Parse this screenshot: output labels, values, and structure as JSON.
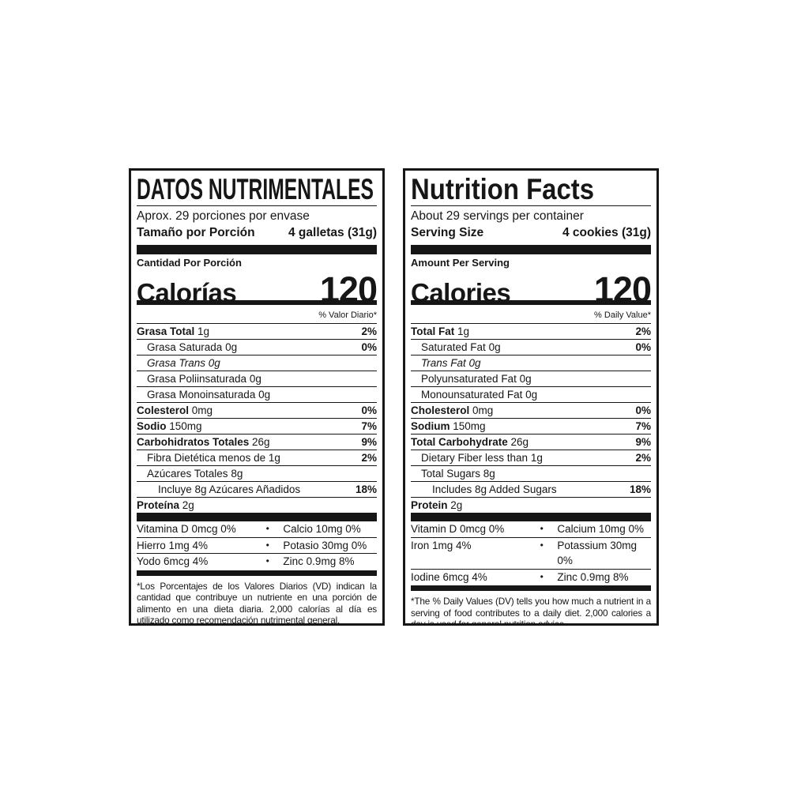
{
  "colors": {
    "ink": "#161616",
    "paper": "#ffffff"
  },
  "labels": [
    {
      "id": "spanish",
      "title": "DATOS NUTRIMENTALES",
      "servings_per_container": "Aprox. 29 porciones por envase",
      "serving_size_label": "Tamaño por Porción",
      "serving_size_value": "4 galletas (31g)",
      "amount_per_serving": "Cantidad Por Porción",
      "calories_label": "Calorías",
      "calories_value": "120",
      "daily_value_header": "% Valor Diario*",
      "nutrients": [
        {
          "name": "Grasa Total",
          "amount": "1g",
          "dv": "2%",
          "bold": true,
          "indent": 0
        },
        {
          "name": "Grasa Saturada",
          "amount": "0g",
          "dv": "0%",
          "indent": 1
        },
        {
          "name": "Grasa Trans",
          "amount": "0g",
          "dv": "",
          "indent": 1,
          "italic": true
        },
        {
          "name": "Grasa Poliinsaturada",
          "amount": "0g",
          "dv": "",
          "indent": 1
        },
        {
          "name": "Grasa Monoinsaturada",
          "amount": "0g",
          "dv": "",
          "indent": 1
        },
        {
          "name": "Colesterol",
          "amount": "0mg",
          "dv": "0%",
          "bold": true,
          "indent": 0
        },
        {
          "name": "Sodio",
          "amount": "150mg",
          "dv": "7%",
          "bold": true,
          "indent": 0
        },
        {
          "name": "Carbohidratos Totales",
          "amount": "26g",
          "dv": "9%",
          "bold": true,
          "indent": 0
        },
        {
          "name": "Fibra Dietética",
          "amount": "menos de 1g",
          "dv": "2%",
          "indent": 1
        },
        {
          "name": "Azúcares Totales",
          "amount": "8g",
          "dv": "",
          "indent": 1
        },
        {
          "name": "Incluye 8g Azúcares Añadidos",
          "amount": "",
          "dv": "18%",
          "indent": 2
        },
        {
          "name": "Proteína",
          "amount": "2g",
          "dv": "",
          "bold": true,
          "indent": 0
        }
      ],
      "micronutrients": [
        {
          "left": "Vitamina D 0mcg 0%",
          "bullet": "•",
          "right": "Calcio 10mg 0%"
        },
        {
          "left": "Hierro 1mg 4%",
          "bullet": "•",
          "right": "Potasio 30mg 0%"
        },
        {
          "left": "Yodo 6mcg 4%",
          "bullet": "•",
          "right": "Zinc 0.9mg 8%"
        }
      ],
      "footnote": "*Los Porcentajes de los Valores Diarios (VD) indican la cantidad que contribuye un nutriente en una porción de alimento en una dieta diaria. 2,000 calorías al día es utilizado como recomendación nutrimental general."
    },
    {
      "id": "english",
      "title": "Nutrition Facts",
      "servings_per_container": "About 29 servings per container",
      "serving_size_label": "Serving Size",
      "serving_size_value": "4 cookies (31g)",
      "amount_per_serving": "Amount Per Serving",
      "calories_label": "Calories",
      "calories_value": "120",
      "daily_value_header": "% Daily Value*",
      "nutrients": [
        {
          "name": "Total Fat",
          "amount": "1g",
          "dv": "2%",
          "bold": true,
          "indent": 0
        },
        {
          "name": "Saturated Fat",
          "amount": "0g",
          "dv": "0%",
          "indent": 1
        },
        {
          "name": "Trans Fat",
          "amount": "0g",
          "dv": "",
          "indent": 1,
          "italic": true
        },
        {
          "name": "Polyunsaturated Fat",
          "amount": "0g",
          "dv": "",
          "indent": 1
        },
        {
          "name": "Monounsaturated Fat",
          "amount": "0g",
          "dv": "",
          "indent": 1
        },
        {
          "name": "Cholesterol",
          "amount": "0mg",
          "dv": "0%",
          "bold": true,
          "indent": 0
        },
        {
          "name": "Sodium",
          "amount": "150mg",
          "dv": "7%",
          "bold": true,
          "indent": 0
        },
        {
          "name": "Total Carbohydrate",
          "amount": "26g",
          "dv": "9%",
          "bold": true,
          "indent": 0
        },
        {
          "name": "Dietary Fiber",
          "amount": "less than 1g",
          "dv": "2%",
          "indent": 1
        },
        {
          "name": "Total Sugars",
          "amount": "8g",
          "dv": "",
          "indent": 1
        },
        {
          "name": "Includes 8g Added Sugars",
          "amount": "",
          "dv": "18%",
          "indent": 2
        },
        {
          "name": "Protein",
          "amount": "2g",
          "dv": "",
          "bold": true,
          "indent": 0
        }
      ],
      "micronutrients": [
        {
          "left": "Vitamin D 0mcg 0%",
          "bullet": "•",
          "right": "Calcium 10mg 0%"
        },
        {
          "left": "Iron 1mg 4%",
          "bullet": "•",
          "right": "Potassium 30mg 0%"
        },
        {
          "left": "Iodine 6mcg 4%",
          "bullet": "•",
          "right": "Zinc 0.9mg 8%"
        }
      ],
      "footnote": "*The % Daily Values (DV) tells you how much a nutrient in a serving of food contributes to a daily diet. 2,000 calories a day is used for general nutrition advice."
    }
  ]
}
